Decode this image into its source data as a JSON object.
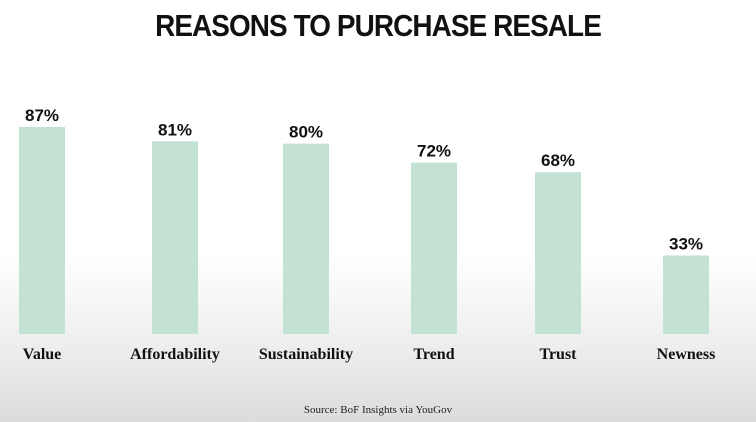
{
  "chart_data": {
    "type": "bar",
    "title": "REASONS TO PURCHASE RESALE",
    "categories": [
      "Value",
      "Affordability",
      "Sustainability",
      "Trend",
      "Trust",
      "Newness"
    ],
    "values": [
      87,
      81,
      80,
      72,
      68,
      33
    ],
    "value_labels": [
      "87%",
      "81%",
      "80%",
      "72%",
      "68%",
      "33%"
    ],
    "bar_color": "#c3e2d3",
    "ylim": [
      0,
      100
    ],
    "grid": false,
    "legend": "none"
  },
  "source": "Source: BoF Insights via YouGov"
}
